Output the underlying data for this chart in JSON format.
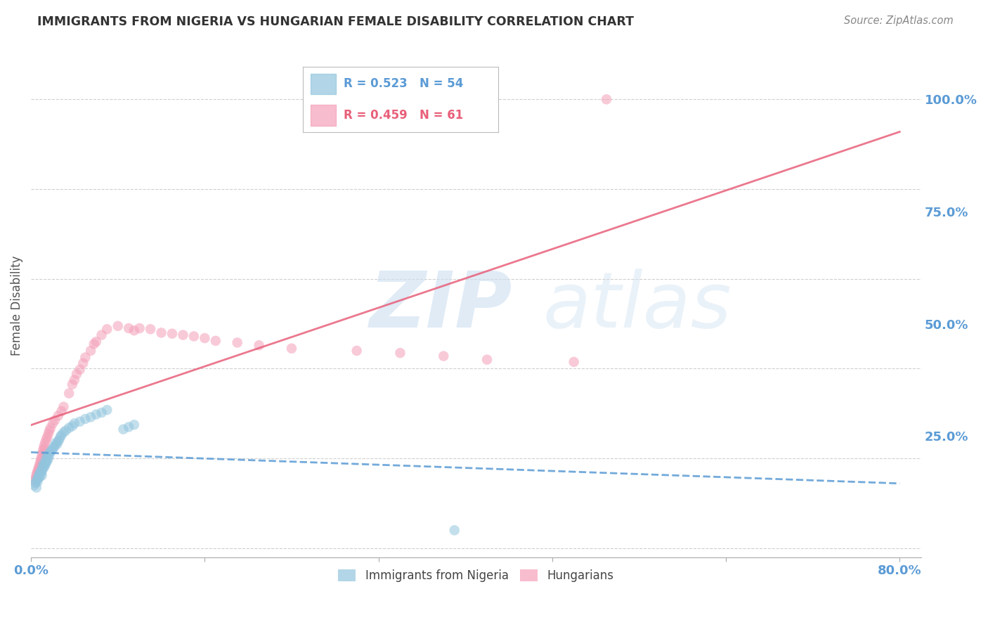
{
  "title": "IMMIGRANTS FROM NIGERIA VS HUNGARIAN FEMALE DISABILITY CORRELATION CHART",
  "source": "Source: ZipAtlas.com",
  "ylabel": "Female Disability",
  "ytick_labels": [
    "100.0%",
    "75.0%",
    "50.0%",
    "25.0%"
  ],
  "ytick_values": [
    1.0,
    0.75,
    0.5,
    0.25
  ],
  "xlim": [
    0.0,
    0.82
  ],
  "ylim": [
    -0.02,
    1.1
  ],
  "legend_bottom": [
    "Immigrants from Nigeria",
    "Hungarians"
  ],
  "nigeria_color": "#92c5de",
  "hungarian_color": "#f4a0b8",
  "nigeria_line_color": "#5b9bd5",
  "hungarian_line_color": "#e8607a",
  "axis_label_color": "#5b9bd5",
  "grid_color": "#d0d0d0",
  "title_color": "#333333",
  "nigeria_scatter_x": [
    0.003,
    0.004,
    0.005,
    0.005,
    0.006,
    0.006,
    0.007,
    0.007,
    0.008,
    0.008,
    0.009,
    0.009,
    0.01,
    0.01,
    0.01,
    0.011,
    0.011,
    0.012,
    0.012,
    0.013,
    0.013,
    0.014,
    0.014,
    0.015,
    0.015,
    0.016,
    0.016,
    0.017,
    0.018,
    0.019,
    0.02,
    0.021,
    0.022,
    0.023,
    0.024,
    0.025,
    0.026,
    0.027,
    0.028,
    0.03,
    0.032,
    0.035,
    0.038,
    0.04,
    0.045,
    0.05,
    0.055,
    0.06,
    0.065,
    0.07,
    0.085,
    0.09,
    0.095,
    0.39
  ],
  "nigeria_scatter_y": [
    0.14,
    0.145,
    0.135,
    0.15,
    0.155,
    0.148,
    0.158,
    0.162,
    0.165,
    0.158,
    0.168,
    0.172,
    0.17,
    0.175,
    0.162,
    0.178,
    0.185,
    0.18,
    0.188,
    0.185,
    0.192,
    0.19,
    0.2,
    0.195,
    0.205,
    0.2,
    0.21,
    0.208,
    0.215,
    0.218,
    0.22,
    0.225,
    0.228,
    0.235,
    0.232,
    0.238,
    0.242,
    0.248,
    0.252,
    0.258,
    0.262,
    0.268,
    0.272,
    0.278,
    0.282,
    0.288,
    0.292,
    0.298,
    0.302,
    0.308,
    0.265,
    0.27,
    0.275,
    0.04
  ],
  "hungarian_scatter_x": [
    0.003,
    0.004,
    0.005,
    0.005,
    0.006,
    0.006,
    0.007,
    0.007,
    0.008,
    0.008,
    0.009,
    0.009,
    0.01,
    0.01,
    0.011,
    0.011,
    0.012,
    0.012,
    0.013,
    0.014,
    0.015,
    0.016,
    0.017,
    0.018,
    0.02,
    0.022,
    0.025,
    0.028,
    0.03,
    0.035,
    0.038,
    0.04,
    0.042,
    0.045,
    0.048,
    0.05,
    0.055,
    0.058,
    0.06,
    0.065,
    0.07,
    0.08,
    0.09,
    0.095,
    0.1,
    0.11,
    0.12,
    0.13,
    0.14,
    0.15,
    0.16,
    0.17,
    0.19,
    0.21,
    0.24,
    0.3,
    0.34,
    0.38,
    0.42,
    0.5,
    0.53
  ],
  "hungarian_scatter_y": [
    0.15,
    0.155,
    0.16,
    0.165,
    0.168,
    0.172,
    0.175,
    0.18,
    0.182,
    0.188,
    0.192,
    0.198,
    0.2,
    0.208,
    0.212,
    0.218,
    0.222,
    0.228,
    0.235,
    0.242,
    0.248,
    0.255,
    0.262,
    0.268,
    0.278,
    0.285,
    0.295,
    0.305,
    0.315,
    0.345,
    0.365,
    0.375,
    0.388,
    0.398,
    0.412,
    0.425,
    0.44,
    0.455,
    0.46,
    0.475,
    0.488,
    0.495,
    0.49,
    0.485,
    0.49,
    0.488,
    0.48,
    0.478,
    0.475,
    0.472,
    0.468,
    0.462,
    0.458,
    0.452,
    0.445,
    0.44,
    0.435,
    0.428,
    0.42,
    0.415,
    1.0
  ]
}
